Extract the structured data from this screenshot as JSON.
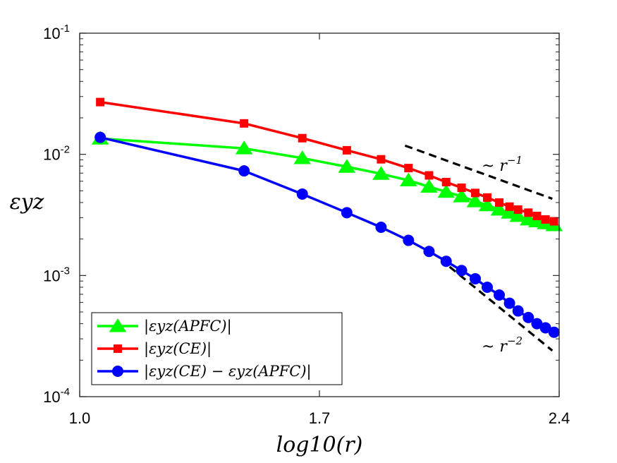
{
  "chart_data": {
    "type": "line",
    "xscale": "linear",
    "yscale": "log",
    "xlim": [
      1.0,
      2.4
    ],
    "ylim": [
      0.0001,
      0.1
    ],
    "xticks": [
      {
        "value": 1.0,
        "label": "1.0"
      },
      {
        "value": 1.7,
        "label": "1.7"
      },
      {
        "value": 2.4,
        "label": "2.4"
      }
    ],
    "yticks": [
      {
        "value": 0.1,
        "base": "10",
        "exp": "-1"
      },
      {
        "value": 0.01,
        "base": "10",
        "exp": "-2"
      },
      {
        "value": 0.001,
        "base": "10",
        "exp": "-3"
      },
      {
        "value": 0.0001,
        "base": "10",
        "exp": "-4"
      }
    ],
    "xlabel": "log10(r)",
    "ylabel": "εyz",
    "grid": false,
    "legend_position": "bottom-left",
    "series": [
      {
        "name": "|εyz(APFC)|",
        "color": "#00ff00",
        "marker": "triangle",
        "points": [
          [
            1.06,
            0.0135
          ],
          [
            1.48,
            0.0112
          ],
          [
            1.65,
            0.0093
          ],
          [
            1.78,
            0.0079
          ],
          [
            1.88,
            0.0069
          ],
          [
            1.96,
            0.0061
          ],
          [
            2.02,
            0.0054
          ],
          [
            2.07,
            0.0049
          ],
          [
            2.115,
            0.0045
          ],
          [
            2.155,
            0.0041
          ],
          [
            2.19,
            0.0038
          ],
          [
            2.225,
            0.0035
          ],
          [
            2.255,
            0.0033
          ],
          [
            2.28,
            0.0031
          ],
          [
            2.31,
            0.0029
          ],
          [
            2.335,
            0.0028
          ],
          [
            2.36,
            0.0027
          ],
          [
            2.385,
            0.0026
          ]
        ]
      },
      {
        "name": "|εyz(CE)|",
        "color": "#ff0000",
        "marker": "square",
        "points": [
          [
            1.06,
            0.027
          ],
          [
            1.48,
            0.018
          ],
          [
            1.65,
            0.0136
          ],
          [
            1.78,
            0.0108
          ],
          [
            1.88,
            0.0091
          ],
          [
            1.96,
            0.0077
          ],
          [
            2.02,
            0.0067
          ],
          [
            2.07,
            0.0059
          ],
          [
            2.115,
            0.0053
          ],
          [
            2.155,
            0.0048
          ],
          [
            2.19,
            0.0044
          ],
          [
            2.225,
            0.004
          ],
          [
            2.255,
            0.0037
          ],
          [
            2.28,
            0.0035
          ],
          [
            2.31,
            0.0033
          ],
          [
            2.335,
            0.0031
          ],
          [
            2.36,
            0.0029
          ],
          [
            2.385,
            0.0028
          ]
        ]
      },
      {
        "name": "|εyz(CE) − εyz(APFC)|",
        "color": "#0000ff",
        "marker": "circle",
        "points": [
          [
            1.06,
            0.0138
          ],
          [
            1.48,
            0.0073
          ],
          [
            1.65,
            0.0047
          ],
          [
            1.78,
            0.0033
          ],
          [
            1.88,
            0.0025
          ],
          [
            1.96,
            0.00195
          ],
          [
            2.02,
            0.00158
          ],
          [
            2.07,
            0.00131
          ],
          [
            2.115,
            0.0011
          ],
          [
            2.155,
            0.00094
          ],
          [
            2.19,
            0.0008
          ],
          [
            2.225,
            0.00069
          ],
          [
            2.255,
            0.00059
          ],
          [
            2.28,
            0.00051
          ],
          [
            2.31,
            0.00045
          ],
          [
            2.335,
            0.0004
          ],
          [
            2.36,
            0.00037
          ],
          [
            2.385,
            0.00034
          ]
        ]
      }
    ],
    "reference_lines": [
      {
        "label_base": "~ r",
        "label_exp": "−1",
        "points": [
          [
            1.95,
            0.0118
          ],
          [
            2.38,
            0.0043
          ]
        ]
      },
      {
        "label_base": "~ r",
        "label_exp": "−2",
        "points": [
          [
            2.08,
            0.00118
          ],
          [
            2.38,
            0.00024
          ]
        ]
      }
    ]
  }
}
